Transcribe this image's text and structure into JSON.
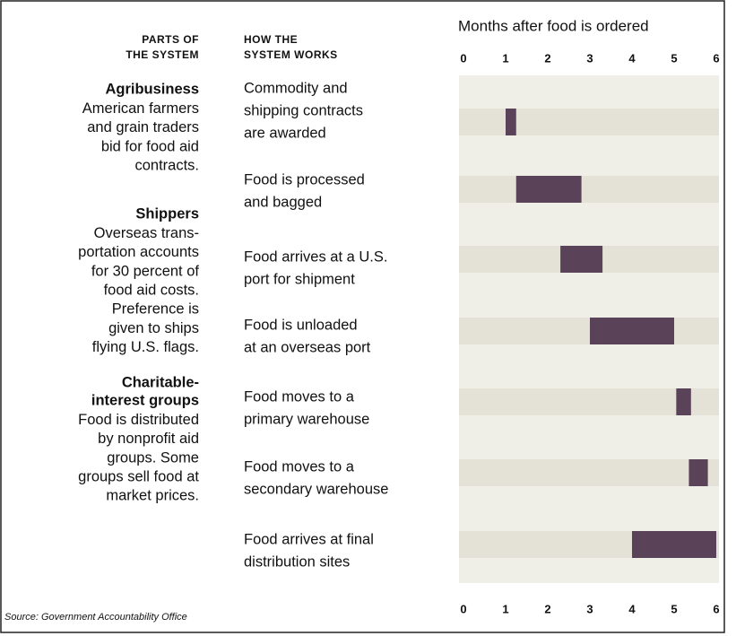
{
  "chart_data": {
    "type": "gantt",
    "axis_title": "Months after food is ordered",
    "parts_header": [
      "PARTS OF",
      "THE SYSTEM"
    ],
    "steps_header": [
      "HOW THE",
      "SYSTEM WORKS"
    ],
    "parts": [
      {
        "title": [
          "Agribusiness"
        ],
        "text": [
          "American farmers",
          "and grain traders",
          "bid for food aid",
          "contracts."
        ]
      },
      {
        "title": [
          "Shippers"
        ],
        "text": [
          "Overseas trans-",
          "portation accounts",
          "for 30 percent of",
          "food aid costs.",
          "Preference is",
          "given to ships",
          "flying U.S. flags."
        ]
      },
      {
        "title": [
          "Charitable-",
          "interest groups"
        ],
        "text": [
          "Food is distributed",
          "by nonprofit aid",
          "groups. Some",
          "groups sell food at",
          "market prices."
        ]
      }
    ],
    "categories": [
      [
        "Commodity and",
        "shipping contracts",
        "are awarded"
      ],
      [
        "Food is processed",
        "and bagged"
      ],
      [
        "Food arrives at a U.S.",
        "port for shipment"
      ],
      [
        "Food is unloaded",
        "at an overseas port"
      ],
      [
        "Food moves to a",
        "primary warehouse"
      ],
      [
        "Food moves to a",
        "secondary warehouse"
      ],
      [
        "Food arrives at final",
        "distribution sites"
      ]
    ],
    "start": [
      1.0,
      1.25,
      2.3,
      3.0,
      5.05,
      5.35,
      4.0
    ],
    "end": [
      1.25,
      2.8,
      3.3,
      5.0,
      5.4,
      5.8,
      6.0
    ],
    "color": "#5a4358",
    "xlim": [
      0,
      6
    ],
    "xticks": [
      0,
      1,
      2,
      3,
      4,
      5,
      6
    ],
    "source": "Source: Government Accountability Office"
  }
}
